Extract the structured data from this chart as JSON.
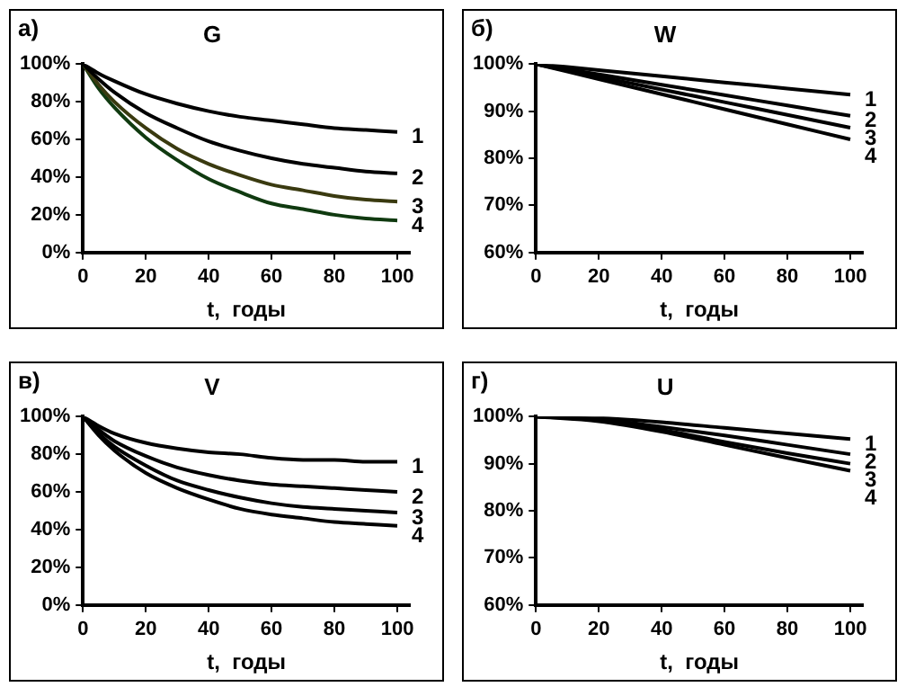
{
  "chart_data": [
    {
      "type": "line",
      "title": "G",
      "annotations": [
        "а)"
      ],
      "xlabel": "t,  годы",
      "x": [
        0,
        5,
        10,
        20,
        30,
        40,
        50,
        60,
        70,
        80,
        90,
        100
      ],
      "xlim": [
        0,
        104
      ],
      "xticks": [
        0,
        20,
        40,
        60,
        80,
        100
      ],
      "ylim": [
        0,
        100
      ],
      "yticks": [
        {
          "value": 0,
          "label": "0%"
        },
        {
          "value": 20,
          "label": "20%"
        },
        {
          "value": 40,
          "label": "40%"
        },
        {
          "value": 60,
          "label": "60%"
        },
        {
          "value": 80,
          "label": "80%"
        },
        {
          "value": 100,
          "label": "100%"
        }
      ],
      "grid": false,
      "legend": false,
      "marker": "none",
      "line_style": "solid",
      "series": [
        {
          "name": "1",
          "color": "#000000",
          "values": [
            100,
            95,
            91,
            84,
            79,
            75,
            72,
            70,
            68,
            66,
            65,
            64
          ]
        },
        {
          "name": "2",
          "color": "#000000",
          "values": [
            100,
            92,
            85,
            74,
            66,
            59,
            54,
            50,
            47,
            45,
            43,
            42
          ]
        },
        {
          "name": "3",
          "color": "#3a3a10",
          "values": [
            100,
            89,
            80,
            66,
            55,
            47,
            41,
            36,
            33,
            30,
            28,
            27
          ]
        },
        {
          "name": "4",
          "color": "#103a10",
          "values": [
            100,
            87,
            77,
            61,
            49,
            39,
            32,
            26,
            23,
            20,
            18,
            17
          ]
        }
      ]
    },
    {
      "type": "line",
      "title": "W",
      "annotations": [
        "б)"
      ],
      "xlabel": "t,  годы",
      "x": [
        0,
        20,
        40,
        60,
        80,
        100
      ],
      "xlim": [
        0,
        104
      ],
      "xticks": [
        0,
        20,
        40,
        60,
        80,
        100
      ],
      "ylim": [
        60,
        100
      ],
      "yticks": [
        {
          "value": 60,
          "label": "60%"
        },
        {
          "value": 70,
          "label": "70%"
        },
        {
          "value": 80,
          "label": "80%"
        },
        {
          "value": 90,
          "label": "90%"
        },
        {
          "value": 100,
          "label": "100%"
        }
      ],
      "grid": false,
      "legend": false,
      "marker": "none",
      "line_style": "solid",
      "series": [
        {
          "name": "1",
          "color": "#000000",
          "values": [
            100,
            98.7,
            97.4,
            96.1,
            94.8,
            93.5
          ]
        },
        {
          "name": "2",
          "color": "#000000",
          "values": [
            100,
            97.8,
            95.6,
            93.4,
            91.2,
            89
          ]
        },
        {
          "name": "3",
          "color": "#000000",
          "values": [
            100,
            97.3,
            94.6,
            91.9,
            89.2,
            86.5
          ]
        },
        {
          "name": "4",
          "color": "#000000",
          "values": [
            100,
            96.8,
            93.6,
            90.4,
            87.2,
            84
          ]
        }
      ]
    },
    {
      "type": "line",
      "title": "V",
      "annotations": [
        "в)"
      ],
      "xlabel": "t,  годы",
      "x": [
        0,
        5,
        10,
        20,
        30,
        40,
        50,
        60,
        70,
        80,
        90,
        100
      ],
      "xlim": [
        0,
        104
      ],
      "xticks": [
        0,
        20,
        40,
        60,
        80,
        100
      ],
      "ylim": [
        0,
        100
      ],
      "yticks": [
        {
          "value": 0,
          "label": "0%"
        },
        {
          "value": 20,
          "label": "20%"
        },
        {
          "value": 40,
          "label": "40%"
        },
        {
          "value": 60,
          "label": "60%"
        },
        {
          "value": 80,
          "label": "80%"
        },
        {
          "value": 100,
          "label": "100%"
        }
      ],
      "grid": false,
      "legend": false,
      "marker": "none",
      "line_style": "solid",
      "series": [
        {
          "name": "1",
          "color": "#000000",
          "values": [
            100,
            95,
            91,
            86,
            83,
            81,
            80,
            78,
            77,
            77,
            76,
            76
          ]
        },
        {
          "name": "2",
          "color": "#000000",
          "values": [
            100,
            93,
            87,
            79,
            73,
            69,
            66,
            64,
            63,
            62,
            61,
            60
          ]
        },
        {
          "name": "3",
          "color": "#000000",
          "values": [
            100,
            91,
            84,
            74,
            66,
            61,
            57,
            54,
            52,
            51,
            50,
            49
          ]
        },
        {
          "name": "4",
          "color": "#000000",
          "values": [
            100,
            90,
            82,
            70,
            62,
            56,
            51,
            48,
            46,
            44,
            43,
            42
          ]
        }
      ]
    },
    {
      "type": "line",
      "title": "U",
      "annotations": [
        "г)"
      ],
      "xlabel": "t,  годы",
      "x": [
        0,
        20,
        40,
        60,
        80,
        100
      ],
      "xlim": [
        0,
        104
      ],
      "xticks": [
        0,
        20,
        40,
        60,
        80,
        100
      ],
      "ylim": [
        60,
        100
      ],
      "yticks": [
        {
          "value": 60,
          "label": "60%"
        },
        {
          "value": 70,
          "label": "70%"
        },
        {
          "value": 80,
          "label": "80%"
        },
        {
          "value": 90,
          "label": "90%"
        },
        {
          "value": 100,
          "label": "100%"
        }
      ],
      "grid": false,
      "legend": false,
      "marker": "none",
      "line_style": "solid",
      "series": [
        {
          "name": "1",
          "color": "#000000",
          "values": [
            100,
            99.7,
            98.8,
            97.6,
            96.4,
            95.2
          ]
        },
        {
          "name": "2",
          "color": "#000000",
          "values": [
            100,
            99.4,
            97.8,
            96,
            94,
            92
          ]
        },
        {
          "name": "3",
          "color": "#000000",
          "values": [
            100,
            99.2,
            97.2,
            94.6,
            92.2,
            90
          ]
        },
        {
          "name": "4",
          "color": "#000000",
          "values": [
            100,
            99,
            96.8,
            94,
            91.2,
            88.5
          ]
        }
      ]
    }
  ]
}
